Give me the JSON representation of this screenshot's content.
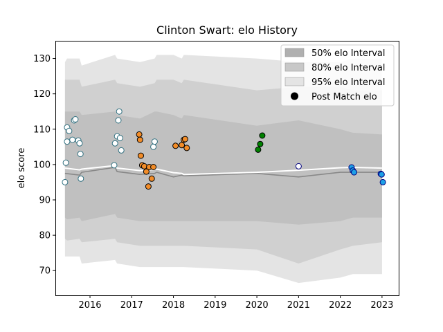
{
  "chart_data": {
    "type": "scatter",
    "title": "Clinton Swart: elo History",
    "xlabel": "",
    "ylabel": "elo score",
    "xlim": [
      2015.17,
      2023.4
    ],
    "ylim": [
      63,
      135
    ],
    "x_ticks": [
      2016,
      2017,
      2018,
      2019,
      2020,
      2021,
      2022,
      2023
    ],
    "y_ticks": [
      70,
      80,
      90,
      100,
      110,
      120,
      130
    ],
    "grid": false,
    "legend_position": "top-right",
    "legend": [
      {
        "label": "50% elo Interval",
        "kind": "band",
        "color": "#b0b0b0"
      },
      {
        "label": "80% elo Interval",
        "kind": "band",
        "color": "#c8c8c8"
      },
      {
        "label": "95% elo Interval",
        "kind": "band",
        "color": "#e4e4e4"
      },
      {
        "label": "Post Match elo",
        "kind": "marker",
        "color": "#000000"
      }
    ],
    "bands": {
      "x": [
        2015.4,
        2015.45,
        2015.75,
        2015.8,
        2016.6,
        2016.65,
        2017.2,
        2017.55,
        2017.6,
        2018.0,
        2018.2,
        2018.25,
        2020.0,
        2021.0,
        2022.0,
        2022.3,
        2023.0
      ],
      "p95": [
        [
          74,
          129
        ],
        [
          74,
          130
        ],
        [
          74,
          130
        ],
        [
          72,
          128
        ],
        [
          73,
          131
        ],
        [
          72,
          130
        ],
        [
          71,
          129
        ],
        [
          71,
          130
        ],
        [
          71,
          131
        ],
        [
          71,
          131
        ],
        [
          71,
          130
        ],
        [
          71,
          131
        ],
        [
          70,
          130
        ],
        [
          66.5,
          129
        ],
        [
          68,
          129
        ],
        [
          69,
          130
        ],
        [
          69,
          130
        ]
      ],
      "p80": [
        [
          79,
          124
        ],
        [
          78.5,
          124
        ],
        [
          79,
          124
        ],
        [
          78,
          122
        ],
        [
          79,
          124
        ],
        [
          78,
          123
        ],
        [
          77,
          122
        ],
        [
          77,
          123
        ],
        [
          77,
          124
        ],
        [
          77,
          124
        ],
        [
          77,
          123
        ],
        [
          77,
          124
        ],
        [
          76,
          121
        ],
        [
          72,
          122
        ],
        [
          76,
          122
        ],
        [
          77,
          121
        ],
        [
          78,
          121
        ]
      ],
      "p50": [
        [
          85,
          115
        ],
        [
          84.5,
          115
        ],
        [
          85,
          115
        ],
        [
          84,
          114
        ],
        [
          86,
          115
        ],
        [
          85,
          114
        ],
        [
          84,
          113
        ],
        [
          84,
          115
        ],
        [
          84,
          115
        ],
        [
          84,
          114
        ],
        [
          84,
          113
        ],
        [
          84,
          114
        ],
        [
          84,
          111
        ],
        [
          83,
          112.5
        ],
        [
          84,
          110
        ],
        [
          85,
          109
        ],
        [
          85,
          108.5
        ]
      ]
    },
    "series_lines": [
      {
        "name": "mean",
        "color": "#888888",
        "x": [
          2015.4,
          2015.75,
          2015.8,
          2016.6,
          2016.65,
          2017.2,
          2017.55,
          2017.6,
          2018.0,
          2018.2,
          2018.25,
          2020.0,
          2021.0,
          2022.0,
          2022.3,
          2023.0
        ],
        "y": [
          97.5,
          97.0,
          97.8,
          99.2,
          98.0,
          97.2,
          97.5,
          97.8,
          96.5,
          97.0,
          96.8,
          97.5,
          96.5,
          97.8,
          97.8,
          97.8
        ]
      },
      {
        "name": "median",
        "color": "#ffffff",
        "x": [
          2015.4,
          2015.75,
          2015.8,
          2016.6,
          2016.65,
          2017.2,
          2017.55,
          2017.6,
          2018.0,
          2018.2,
          2018.25,
          2020.0,
          2021.0,
          2022.0,
          2022.3,
          2023.0
        ],
        "y": [
          99.0,
          98.5,
          98.7,
          99.7,
          99.0,
          98.3,
          98.6,
          98.7,
          97.7,
          97.5,
          97.2,
          97.8,
          98.4,
          99.1,
          99.2,
          99.0
        ]
      }
    ],
    "point_groups": [
      {
        "fill": "#ffffff",
        "edge": "#2f6f7f",
        "x": [
          2015.4,
          2015.42,
          2015.45,
          2015.45,
          2015.5,
          2015.58,
          2015.62,
          2015.65,
          2015.72,
          2015.75,
          2015.77,
          2015.78,
          2016.58,
          2016.6,
          2016.65,
          2016.68,
          2016.7,
          2016.72,
          2016.75,
          2017.52,
          2017.55
        ],
        "y": [
          95.0,
          100.5,
          110.5,
          106.5,
          109.5,
          107.0,
          112.5,
          112.8,
          106.8,
          106.0,
          103.0,
          96.0,
          99.8,
          106.0,
          108.0,
          112.5,
          115.0,
          107.5,
          104.0,
          105.0,
          106.5
        ]
      },
      {
        "fill": "#f28c28",
        "edge": "#000000",
        "x": [
          2017.18,
          2017.2,
          2017.22,
          2017.25,
          2017.3,
          2017.35,
          2017.42,
          2017.48,
          2017.52,
          2017.4,
          2018.05,
          2018.2,
          2018.25,
          2018.28,
          2018.32
        ],
        "y": [
          108.5,
          107.0,
          102.5,
          99.8,
          99.5,
          98.0,
          99.3,
          96.0,
          99.3,
          93.8,
          105.3,
          105.5,
          107.0,
          107.2,
          104.7
        ]
      },
      {
        "fill": "#008000",
        "edge": "#000000",
        "x": [
          2020.03,
          2020.08,
          2020.13
        ],
        "y": [
          104.2,
          105.8,
          108.2
        ]
      },
      {
        "fill": "#ffffff",
        "edge": "#000080",
        "x": [
          2021.0
        ],
        "y": [
          99.5
        ]
      },
      {
        "fill": "#1ea0e6",
        "edge": "#000080",
        "x": [
          2022.27,
          2022.3,
          2022.33,
          2022.97,
          2022.99,
          2023.02
        ],
        "y": [
          99.2,
          98.3,
          97.8,
          97.4,
          97.2,
          95.0
        ]
      }
    ]
  }
}
